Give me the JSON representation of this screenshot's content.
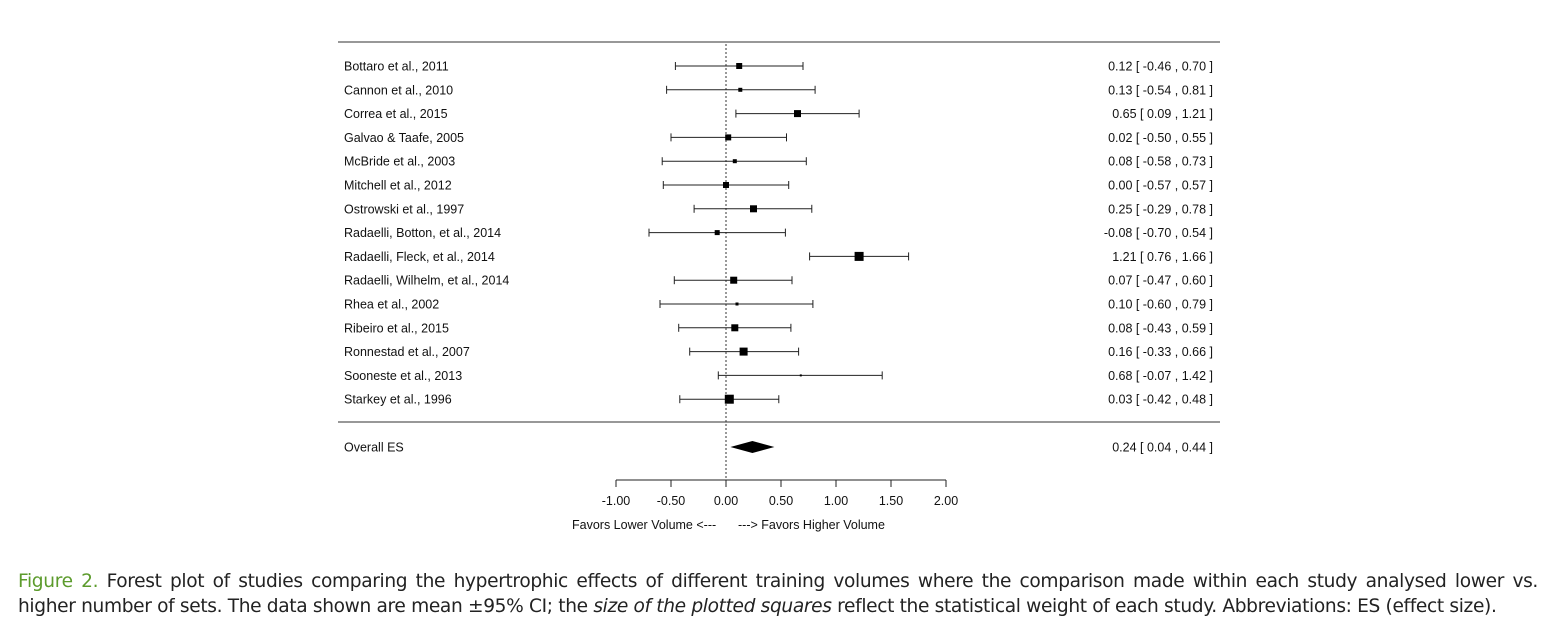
{
  "chart_data": {
    "type": "forest",
    "x_ticks": [
      "-1.00",
      "-0.50",
      "0.00",
      "0.50",
      "1.00",
      "1.50",
      "2.00"
    ],
    "xlim": [
      -1,
      2
    ],
    "reference_line": 0,
    "x_annotation_left": "Favors Lower Volume <---",
    "x_annotation_right": "---> Favors Higher Volume",
    "studies": [
      {
        "label": "Bottaro et al., 2011",
        "es": 0.12,
        "lo": -0.46,
        "hi": 0.7,
        "text": "0.12 [ -0.46 , 0.70 ]",
        "weight": 6
      },
      {
        "label": "Cannon et al., 2010",
        "es": 0.13,
        "lo": -0.54,
        "hi": 0.81,
        "text": "0.13 [ -0.54 , 0.81 ]",
        "weight": 4
      },
      {
        "label": "Correa et al., 2015",
        "es": 0.65,
        "lo": 0.09,
        "hi": 1.21,
        "text": "0.65 [  0.09 , 1.21 ]",
        "weight": 7
      },
      {
        "label": "Galvao & Taafe, 2005",
        "es": 0.02,
        "lo": -0.5,
        "hi": 0.55,
        "text": "0.02 [ -0.50 , 0.55 ]",
        "weight": 6
      },
      {
        "label": "McBride et al., 2003",
        "es": 0.08,
        "lo": -0.58,
        "hi": 0.73,
        "text": "0.08 [ -0.58 , 0.73 ]",
        "weight": 4
      },
      {
        "label": "Mitchell et al., 2012",
        "es": 0.0,
        "lo": -0.57,
        "hi": 0.57,
        "text": "0.00 [ -0.57 , 0.57 ]",
        "weight": 6
      },
      {
        "label": "Ostrowski et al., 1997",
        "es": 0.25,
        "lo": -0.29,
        "hi": 0.78,
        "text": "0.25 [ -0.29 , 0.78 ]",
        "weight": 7
      },
      {
        "label": "Radaelli, Botton, et al., 2014",
        "es": -0.08,
        "lo": -0.7,
        "hi": 0.54,
        "text": "-0.08 [ -0.70 , 0.54 ]",
        "weight": 5
      },
      {
        "label": "Radaelli, Fleck, et al., 2014",
        "es": 1.21,
        "lo": 0.76,
        "hi": 1.66,
        "text": "1.21 [  0.76 , 1.66 ]",
        "weight": 9
      },
      {
        "label": "Radaelli, Wilhelm, et al., 2014",
        "es": 0.07,
        "lo": -0.47,
        "hi": 0.6,
        "text": "0.07 [ -0.47 , 0.60 ]",
        "weight": 7
      },
      {
        "label": "Rhea et al., 2002",
        "es": 0.1,
        "lo": -0.6,
        "hi": 0.79,
        "text": "0.10 [ -0.60 , 0.79 ]",
        "weight": 3
      },
      {
        "label": "Ribeiro et al., 2015",
        "es": 0.08,
        "lo": -0.43,
        "hi": 0.59,
        "text": "0.08 [ -0.43 , 0.59 ]",
        "weight": 7
      },
      {
        "label": "Ronnestad et al., 2007",
        "es": 0.16,
        "lo": -0.33,
        "hi": 0.66,
        "text": "0.16 [ -0.33 , 0.66 ]",
        "weight": 8
      },
      {
        "label": "Sooneste et al., 2013",
        "es": 0.68,
        "lo": -0.07,
        "hi": 1.42,
        "text": "0.68 [ -0.07 , 1.42 ]",
        "weight": 2
      },
      {
        "label": "Starkey et al., 1996",
        "es": 0.03,
        "lo": -0.42,
        "hi": 0.48,
        "text": "0.03 [ -0.42 , 0.48 ]",
        "weight": 9
      }
    ],
    "overall": {
      "label": "Overall ES",
      "es": 0.24,
      "lo": 0.04,
      "hi": 0.44,
      "text": "0.24 [  0.04 , 0.44 ]"
    }
  },
  "caption": {
    "figure_label": "Figure 2.",
    "line1": "Forest plot of studies comparing the hypertrophic effects of different training volumes where the comparison made within each study analysed lower vs.",
    "line2_a": "higher number of sets. The data shown are mean ±95% CI; the ",
    "line2_em": "size of the plotted squares",
    "line2_b": " reflect the statistical weight of each study. Abbreviations: ES (effect size)."
  }
}
